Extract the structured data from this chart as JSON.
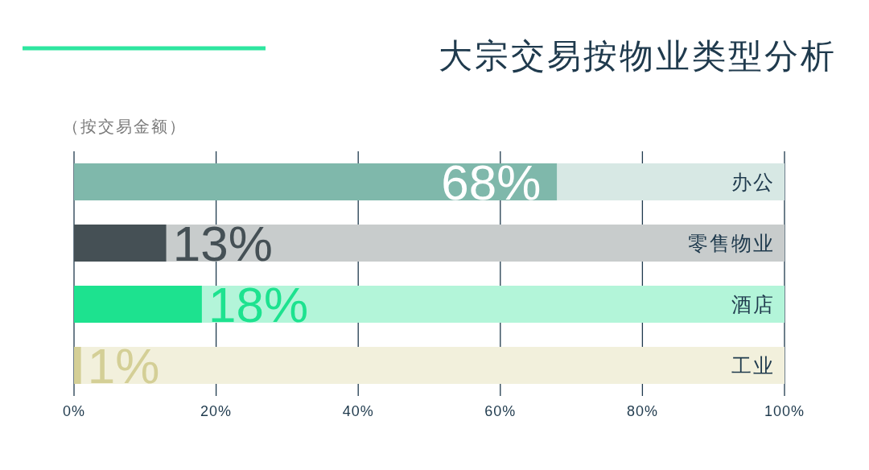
{
  "chart_data": {
    "type": "bar",
    "orientation": "horizontal",
    "stacked": true,
    "title": "大宗交易按物业类型分析",
    "subtitle": "（按交易金额）",
    "categories": [
      "办公",
      "零售物业",
      "酒店",
      "工业"
    ],
    "series": [
      {
        "colors": [
          "#7fb8ab",
          "#455055",
          "#1de28f",
          "#d4cf96"
        ],
        "values": [
          68,
          13,
          18,
          1
        ],
        "value_labels": [
          "68%",
          "13%",
          "18%",
          "1%"
        ]
      },
      {
        "colors": [
          "#d7e8e4",
          "#c8cccc",
          "#b3f5d9",
          "#f2f0dc"
        ],
        "values": [
          32,
          87,
          82,
          99
        ]
      }
    ],
    "xlim": [
      0,
      100
    ],
    "xticks": [
      {
        "value": 0,
        "label": "0%"
      },
      {
        "value": 20,
        "label": "20%"
      },
      {
        "value": 40,
        "label": "40%"
      },
      {
        "value": 60,
        "label": "60%"
      },
      {
        "value": 80,
        "label": "80%"
      },
      {
        "value": 100,
        "label": "100%"
      }
    ],
    "grid": "x"
  }
}
